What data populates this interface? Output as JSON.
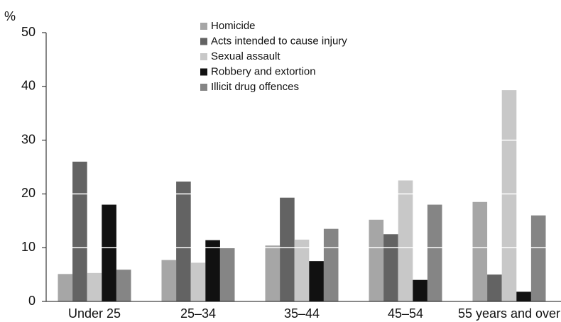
{
  "chart_data": {
    "type": "bar",
    "y_label": "%",
    "categories": [
      "Under 25",
      "25–34",
      "35–44",
      "45–54",
      "55 years and over"
    ],
    "series": [
      {
        "name": "Homicide",
        "color": "#a6a6a6",
        "values": [
          5.1,
          7.7,
          10.4,
          15.2,
          18.5
        ]
      },
      {
        "name": "Acts intended to cause injury",
        "color": "#636363",
        "values": [
          26,
          22.3,
          19.3,
          12.5,
          5
        ]
      },
      {
        "name": "Sexual assault",
        "color": "#c8c8c8",
        "values": [
          5.3,
          7.2,
          11.5,
          22.5,
          39.3
        ]
      },
      {
        "name": "Robbery and extortion",
        "color": "#111111",
        "values": [
          18,
          11.4,
          7.5,
          4,
          1.8
        ]
      },
      {
        "name": "Illicit drug offences",
        "color": "#858585",
        "values": [
          5.9,
          9.9,
          13.5,
          18,
          16
        ]
      }
    ],
    "ylim": [
      0,
      50
    ],
    "yticks": [
      0,
      10,
      20,
      30,
      40,
      50
    ],
    "grid": true,
    "legend": "top"
  }
}
